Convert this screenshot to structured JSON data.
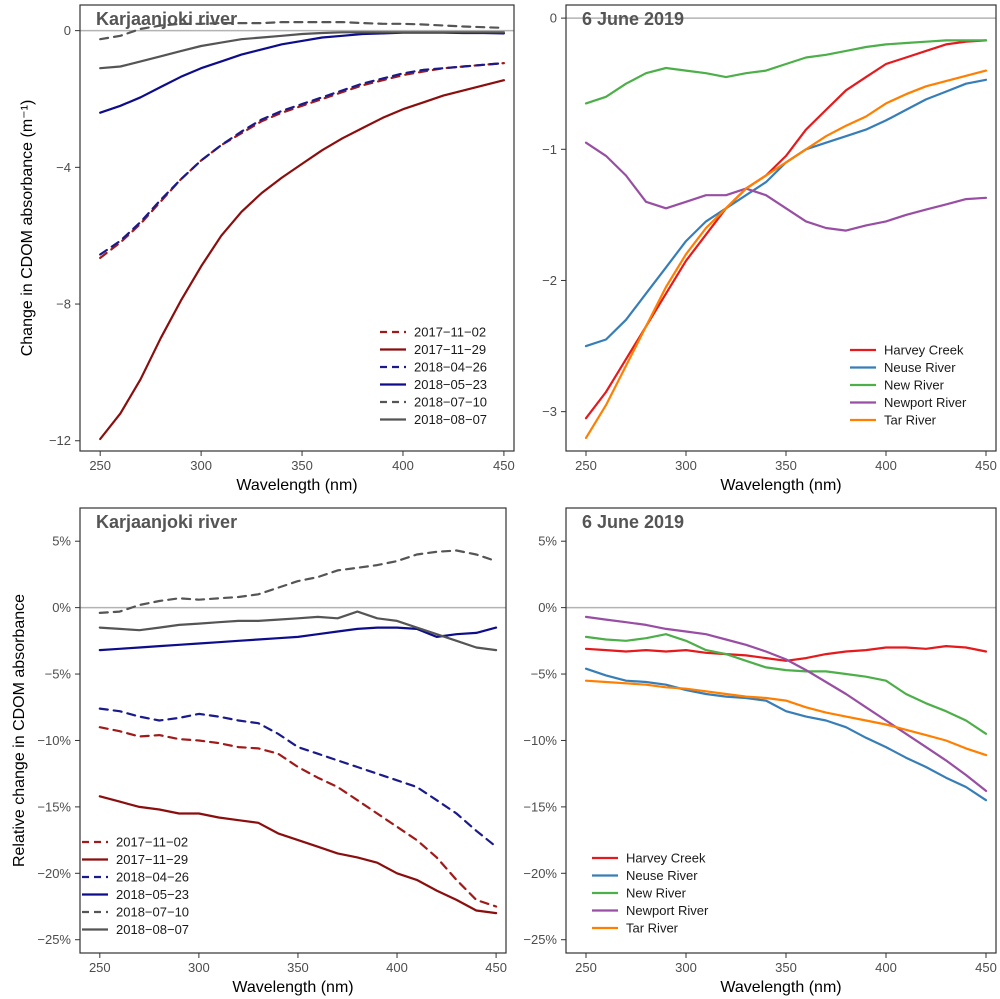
{
  "chart_data": [
    {
      "type": "line",
      "title": "Karjaanjoki river",
      "xlabel": "Wavelength (nm)",
      "ylabel": "Change in CDOM absorbance (m⁻¹)",
      "xlim": [
        240,
        455
      ],
      "ylim": [
        -12.3,
        0.75
      ],
      "xticks": [
        250,
        300,
        350,
        400,
        450
      ],
      "yticks": [
        0,
        -4,
        -8,
        -12
      ],
      "ytick_labels": [
        "0",
        "−4",
        "−8",
        "−12"
      ],
      "legend_position": "bottom-right",
      "reference_line": 0,
      "x": [
        250,
        260,
        270,
        280,
        290,
        300,
        310,
        320,
        330,
        340,
        350,
        360,
        370,
        380,
        390,
        400,
        410,
        420,
        430,
        440,
        450
      ],
      "series": [
        {
          "name": "2017−11−02",
          "color": "#a11a1a",
          "dash": "dashed",
          "values": [
            -6.65,
            -6.2,
            -5.65,
            -5.0,
            -4.35,
            -3.8,
            -3.35,
            -3.0,
            -2.65,
            -2.4,
            -2.2,
            -2.0,
            -1.8,
            -1.6,
            -1.45,
            -1.3,
            -1.2,
            -1.1,
            -1.05,
            -1.0,
            -0.95
          ]
        },
        {
          "name": "2017−11−29",
          "color": "#8b0e0e",
          "dash": "solid",
          "values": [
            -11.95,
            -11.2,
            -10.2,
            -9.0,
            -7.9,
            -6.9,
            -6.0,
            -5.3,
            -4.75,
            -4.3,
            -3.9,
            -3.5,
            -3.15,
            -2.85,
            -2.55,
            -2.3,
            -2.1,
            -1.9,
            -1.75,
            -1.6,
            -1.45
          ]
        },
        {
          "name": "2018−04−26",
          "color": "#1a1a8c",
          "dash": "dashed",
          "values": [
            -6.55,
            -6.15,
            -5.6,
            -4.95,
            -4.35,
            -3.8,
            -3.35,
            -2.95,
            -2.6,
            -2.35,
            -2.15,
            -1.95,
            -1.75,
            -1.55,
            -1.4,
            -1.25,
            -1.15,
            -1.1,
            -1.05,
            -1.0,
            -0.95
          ]
        },
        {
          "name": "2018−05−23",
          "color": "#0d0d8c",
          "dash": "solid",
          "values": [
            -2.4,
            -2.2,
            -1.95,
            -1.65,
            -1.35,
            -1.1,
            -0.9,
            -0.7,
            -0.55,
            -0.4,
            -0.3,
            -0.2,
            -0.15,
            -0.1,
            -0.08,
            -0.06,
            -0.06,
            -0.06,
            -0.07,
            -0.07,
            -0.08
          ]
        },
        {
          "name": "2018−07−10",
          "color": "#555555",
          "dash": "dashed",
          "values": [
            -0.25,
            -0.15,
            0.05,
            0.15,
            0.2,
            0.2,
            0.22,
            0.22,
            0.22,
            0.25,
            0.25,
            0.25,
            0.25,
            0.22,
            0.2,
            0.2,
            0.18,
            0.15,
            0.12,
            0.1,
            0.08
          ]
        },
        {
          "name": "2018−08−07",
          "color": "#555555",
          "dash": "solid",
          "values": [
            -1.1,
            -1.05,
            -0.9,
            -0.75,
            -0.6,
            -0.45,
            -0.35,
            -0.25,
            -0.2,
            -0.15,
            -0.1,
            -0.07,
            -0.05,
            -0.05,
            -0.05,
            -0.05,
            -0.05,
            -0.05,
            -0.05,
            -0.05,
            -0.05
          ]
        }
      ]
    },
    {
      "type": "line",
      "title": "6 June 2019",
      "xlabel": "Wavelength (nm)",
      "ylabel": "",
      "xlim": [
        240,
        455
      ],
      "ylim": [
        -3.3,
        0.1
      ],
      "xticks": [
        250,
        300,
        350,
        400,
        450
      ],
      "yticks": [
        0,
        -1,
        -2,
        -3
      ],
      "ytick_labels": [
        "0",
        "−1",
        "−2",
        "−3"
      ],
      "legend_position": "bottom-right",
      "reference_line": 0,
      "x": [
        250,
        260,
        270,
        280,
        290,
        300,
        310,
        320,
        330,
        340,
        350,
        360,
        370,
        380,
        390,
        400,
        410,
        420,
        430,
        440,
        450
      ],
      "series": [
        {
          "name": "Harvey Creek",
          "color": "#e41a1c",
          "dash": "solid",
          "values": [
            -3.05,
            -2.85,
            -2.6,
            -2.35,
            -2.1,
            -1.85,
            -1.65,
            -1.45,
            -1.3,
            -1.2,
            -1.05,
            -0.85,
            -0.7,
            -0.55,
            -0.45,
            -0.35,
            -0.3,
            -0.25,
            -0.2,
            -0.18,
            -0.17
          ]
        },
        {
          "name": "Neuse River",
          "color": "#377eb8",
          "dash": "solid",
          "values": [
            -2.5,
            -2.45,
            -2.3,
            -2.1,
            -1.9,
            -1.7,
            -1.55,
            -1.45,
            -1.35,
            -1.25,
            -1.1,
            -1.0,
            -0.95,
            -0.9,
            -0.85,
            -0.78,
            -0.7,
            -0.62,
            -0.56,
            -0.5,
            -0.47
          ]
        },
        {
          "name": "New River",
          "color": "#4daf4a",
          "dash": "solid",
          "values": [
            -0.65,
            -0.6,
            -0.5,
            -0.42,
            -0.38,
            -0.4,
            -0.42,
            -0.45,
            -0.42,
            -0.4,
            -0.35,
            -0.3,
            -0.28,
            -0.25,
            -0.22,
            -0.2,
            -0.19,
            -0.18,
            -0.17,
            -0.17,
            -0.17
          ]
        },
        {
          "name": "Newport River",
          "color": "#984ea3",
          "dash": "solid",
          "values": [
            -0.95,
            -1.05,
            -1.2,
            -1.4,
            -1.45,
            -1.4,
            -1.35,
            -1.35,
            -1.3,
            -1.35,
            -1.45,
            -1.55,
            -1.6,
            -1.62,
            -1.58,
            -1.55,
            -1.5,
            -1.46,
            -1.42,
            -1.38,
            -1.37
          ]
        },
        {
          "name": "Tar River",
          "color": "#ff7f00",
          "dash": "solid",
          "values": [
            -3.2,
            -2.95,
            -2.65,
            -2.35,
            -2.05,
            -1.8,
            -1.6,
            -1.45,
            -1.3,
            -1.2,
            -1.1,
            -1.0,
            -0.9,
            -0.82,
            -0.75,
            -0.65,
            -0.58,
            -0.52,
            -0.48,
            -0.44,
            -0.4
          ]
        }
      ]
    },
    {
      "type": "line",
      "title": "Karjaanjoki river",
      "xlabel": "Wavelength (nm)",
      "ylabel": "Relative change in CDOM absorbance",
      "xlim": [
        240,
        455
      ],
      "ylim": [
        -26,
        7.5
      ],
      "xticks": [
        250,
        300,
        350,
        400,
        450
      ],
      "yticks": [
        5,
        0,
        -5,
        -10,
        -15,
        -20,
        -25
      ],
      "ytick_labels": [
        "5%",
        "0%",
        "−5%",
        "−10%",
        "−15%",
        "−20%",
        "−25%"
      ],
      "legend_position": "bottom-left",
      "reference_line": 0,
      "x": [
        250,
        260,
        270,
        280,
        290,
        300,
        310,
        320,
        330,
        340,
        350,
        360,
        370,
        380,
        390,
        400,
        410,
        420,
        430,
        440,
        450
      ],
      "series": [
        {
          "name": "2017−11−02",
          "color": "#a11a1a",
          "dash": "dashed",
          "values": [
            -9.0,
            -9.3,
            -9.7,
            -9.6,
            -9.9,
            -10.0,
            -10.2,
            -10.5,
            -10.6,
            -11.0,
            -12.0,
            -12.8,
            -13.5,
            -14.5,
            -15.5,
            -16.5,
            -17.5,
            -18.8,
            -20.5,
            -22.0,
            -22.5
          ]
        },
        {
          "name": "2017−11−29",
          "color": "#8b0e0e",
          "dash": "solid",
          "values": [
            -14.2,
            -14.6,
            -15.0,
            -15.2,
            -15.5,
            -15.5,
            -15.8,
            -16.0,
            -16.2,
            -17.0,
            -17.5,
            -18.0,
            -18.5,
            -18.8,
            -19.2,
            -20.0,
            -20.5,
            -21.3,
            -22.0,
            -22.8,
            -23.0
          ]
        },
        {
          "name": "2018−04−26",
          "color": "#1a1a8c",
          "dash": "dashed",
          "values": [
            -7.6,
            -7.8,
            -8.2,
            -8.5,
            -8.3,
            -8.0,
            -8.2,
            -8.5,
            -8.7,
            -9.5,
            -10.5,
            -11.0,
            -11.5,
            -12.0,
            -12.5,
            -13.0,
            -13.5,
            -14.5,
            -15.5,
            -16.8,
            -18.0
          ]
        },
        {
          "name": "2018−05−23",
          "color": "#0d0d8c",
          "dash": "solid",
          "values": [
            -3.2,
            -3.1,
            -3.0,
            -2.9,
            -2.8,
            -2.7,
            -2.6,
            -2.5,
            -2.4,
            -2.3,
            -2.2,
            -2.0,
            -1.8,
            -1.6,
            -1.5,
            -1.5,
            -1.6,
            -2.2,
            -2.0,
            -1.9,
            -1.5
          ]
        },
        {
          "name": "2018−07−10",
          "color": "#555555",
          "dash": "dashed",
          "values": [
            -0.4,
            -0.3,
            0.2,
            0.5,
            0.7,
            0.6,
            0.7,
            0.8,
            1.0,
            1.5,
            2.0,
            2.3,
            2.8,
            3.0,
            3.2,
            3.5,
            4.0,
            4.2,
            4.3,
            4.0,
            3.5
          ]
        },
        {
          "name": "2018−08−07",
          "color": "#555555",
          "dash": "solid",
          "values": [
            -1.5,
            -1.6,
            -1.7,
            -1.5,
            -1.3,
            -1.2,
            -1.1,
            -1.0,
            -1.0,
            -0.9,
            -0.8,
            -0.7,
            -0.8,
            -0.3,
            -0.8,
            -1.0,
            -1.5,
            -2.0,
            -2.5,
            -3.0,
            -3.2
          ]
        }
      ]
    },
    {
      "type": "line",
      "title": "6 June 2019",
      "xlabel": "Wavelength (nm)",
      "ylabel": "",
      "xlim": [
        240,
        455
      ],
      "ylim": [
        -26,
        7.5
      ],
      "xticks": [
        250,
        300,
        350,
        400,
        450
      ],
      "yticks": [
        5,
        0,
        -5,
        -10,
        -15,
        -20,
        -25
      ],
      "ytick_labels": [
        "5%",
        "0%",
        "−5%",
        "−10%",
        "−15%",
        "−20%",
        "−25%"
      ],
      "legend_position": "bottom-left",
      "reference_line": 0,
      "x": [
        250,
        260,
        270,
        280,
        290,
        300,
        310,
        320,
        330,
        340,
        350,
        360,
        370,
        380,
        390,
        400,
        410,
        420,
        430,
        440,
        450
      ],
      "series": [
        {
          "name": "Harvey Creek",
          "color": "#e41a1c",
          "dash": "solid",
          "values": [
            -3.1,
            -3.2,
            -3.3,
            -3.2,
            -3.3,
            -3.2,
            -3.4,
            -3.5,
            -3.6,
            -3.8,
            -4.0,
            -3.8,
            -3.5,
            -3.3,
            -3.2,
            -3.0,
            -3.0,
            -3.1,
            -2.9,
            -3.0,
            -3.3
          ]
        },
        {
          "name": "Neuse River",
          "color": "#377eb8",
          "dash": "solid",
          "values": [
            -4.6,
            -5.1,
            -5.5,
            -5.6,
            -5.8,
            -6.2,
            -6.5,
            -6.7,
            -6.8,
            -7.0,
            -7.8,
            -8.2,
            -8.5,
            -9.0,
            -9.8,
            -10.5,
            -11.3,
            -12.0,
            -12.8,
            -13.5,
            -14.5
          ]
        },
        {
          "name": "New River",
          "color": "#4daf4a",
          "dash": "solid",
          "values": [
            -2.2,
            -2.4,
            -2.5,
            -2.3,
            -2.0,
            -2.5,
            -3.2,
            -3.5,
            -4.0,
            -4.5,
            -4.7,
            -4.8,
            -4.8,
            -5.0,
            -5.2,
            -5.5,
            -6.5,
            -7.2,
            -7.8,
            -8.5,
            -9.5
          ]
        },
        {
          "name": "Newport River",
          "color": "#984ea3",
          "dash": "solid",
          "values": [
            -0.7,
            -0.9,
            -1.1,
            -1.3,
            -1.6,
            -1.8,
            -2.0,
            -2.4,
            -2.8,
            -3.3,
            -3.9,
            -4.7,
            -5.6,
            -6.5,
            -7.5,
            -8.5,
            -9.5,
            -10.5,
            -11.5,
            -12.6,
            -13.8
          ]
        },
        {
          "name": "Tar River",
          "color": "#ff7f00",
          "dash": "solid",
          "values": [
            -5.5,
            -5.6,
            -5.7,
            -5.8,
            -6.0,
            -6.1,
            -6.3,
            -6.5,
            -6.7,
            -6.8,
            -7.0,
            -7.5,
            -7.9,
            -8.2,
            -8.5,
            -8.8,
            -9.2,
            -9.6,
            -10.0,
            -10.6,
            -11.1
          ]
        }
      ]
    }
  ]
}
